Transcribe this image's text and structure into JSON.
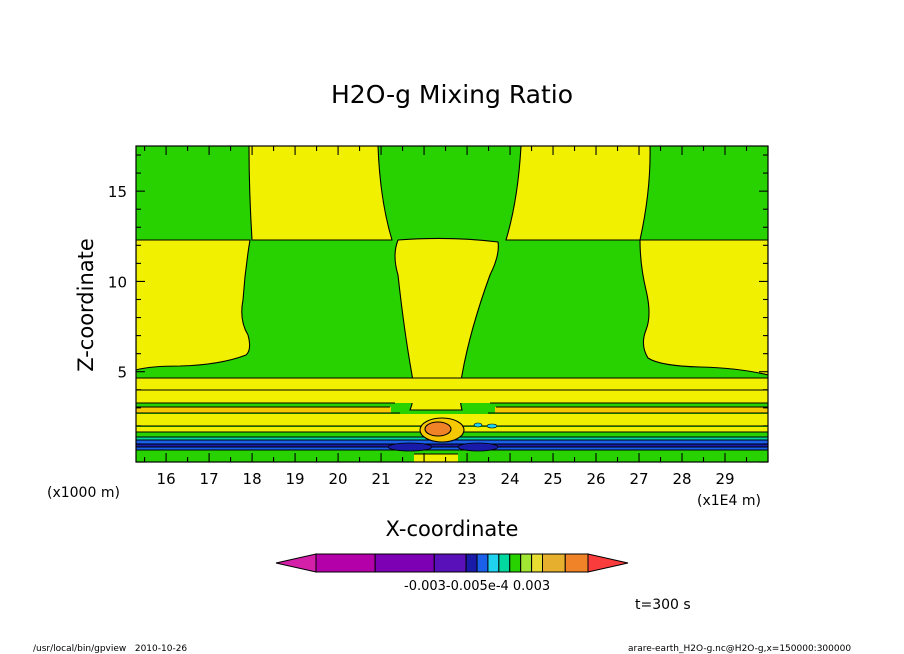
{
  "chart_data": {
    "type": "heatmap",
    "title": "H2O-g Mixing Ratio",
    "xlabel": "X-coordinate",
    "ylabel": "Z-coordinate",
    "x_unit_label": "(x1E4 m)",
    "y_unit_label": "(x1000 m)",
    "xlim": [
      15.3,
      30.0
    ],
    "ylim": [
      0,
      17.5
    ],
    "x_ticks": [
      "16",
      "17",
      "18",
      "19",
      "20",
      "21",
      "22",
      "23",
      "24",
      "25",
      "26",
      "27",
      "28",
      "29"
    ],
    "y_ticks": [
      "5",
      "10",
      "15"
    ],
    "colorbar": {
      "colors": [
        "#d41fa8",
        "#b400a8",
        "#7d00b4",
        "#5a10b8",
        "#1a1aa8",
        "#1a60e8",
        "#1ed2f0",
        "#00d8a0",
        "#28d200",
        "#a0e632",
        "#e6dc32",
        "#e6af2d",
        "#f08228",
        "#fa3c3c"
      ],
      "tick_labels": [
        "-0.003",
        "-0.005e-4",
        "0.003"
      ],
      "shown_as": "-0.003-0.005e-4 0.003"
    },
    "annotation": "t=300 s",
    "footer_left": "/usr/local/bin/gpview   2010-10-26",
    "footer_right": "arare-earth_H2O-g.nc@H2O-g,x=150000:300000"
  }
}
